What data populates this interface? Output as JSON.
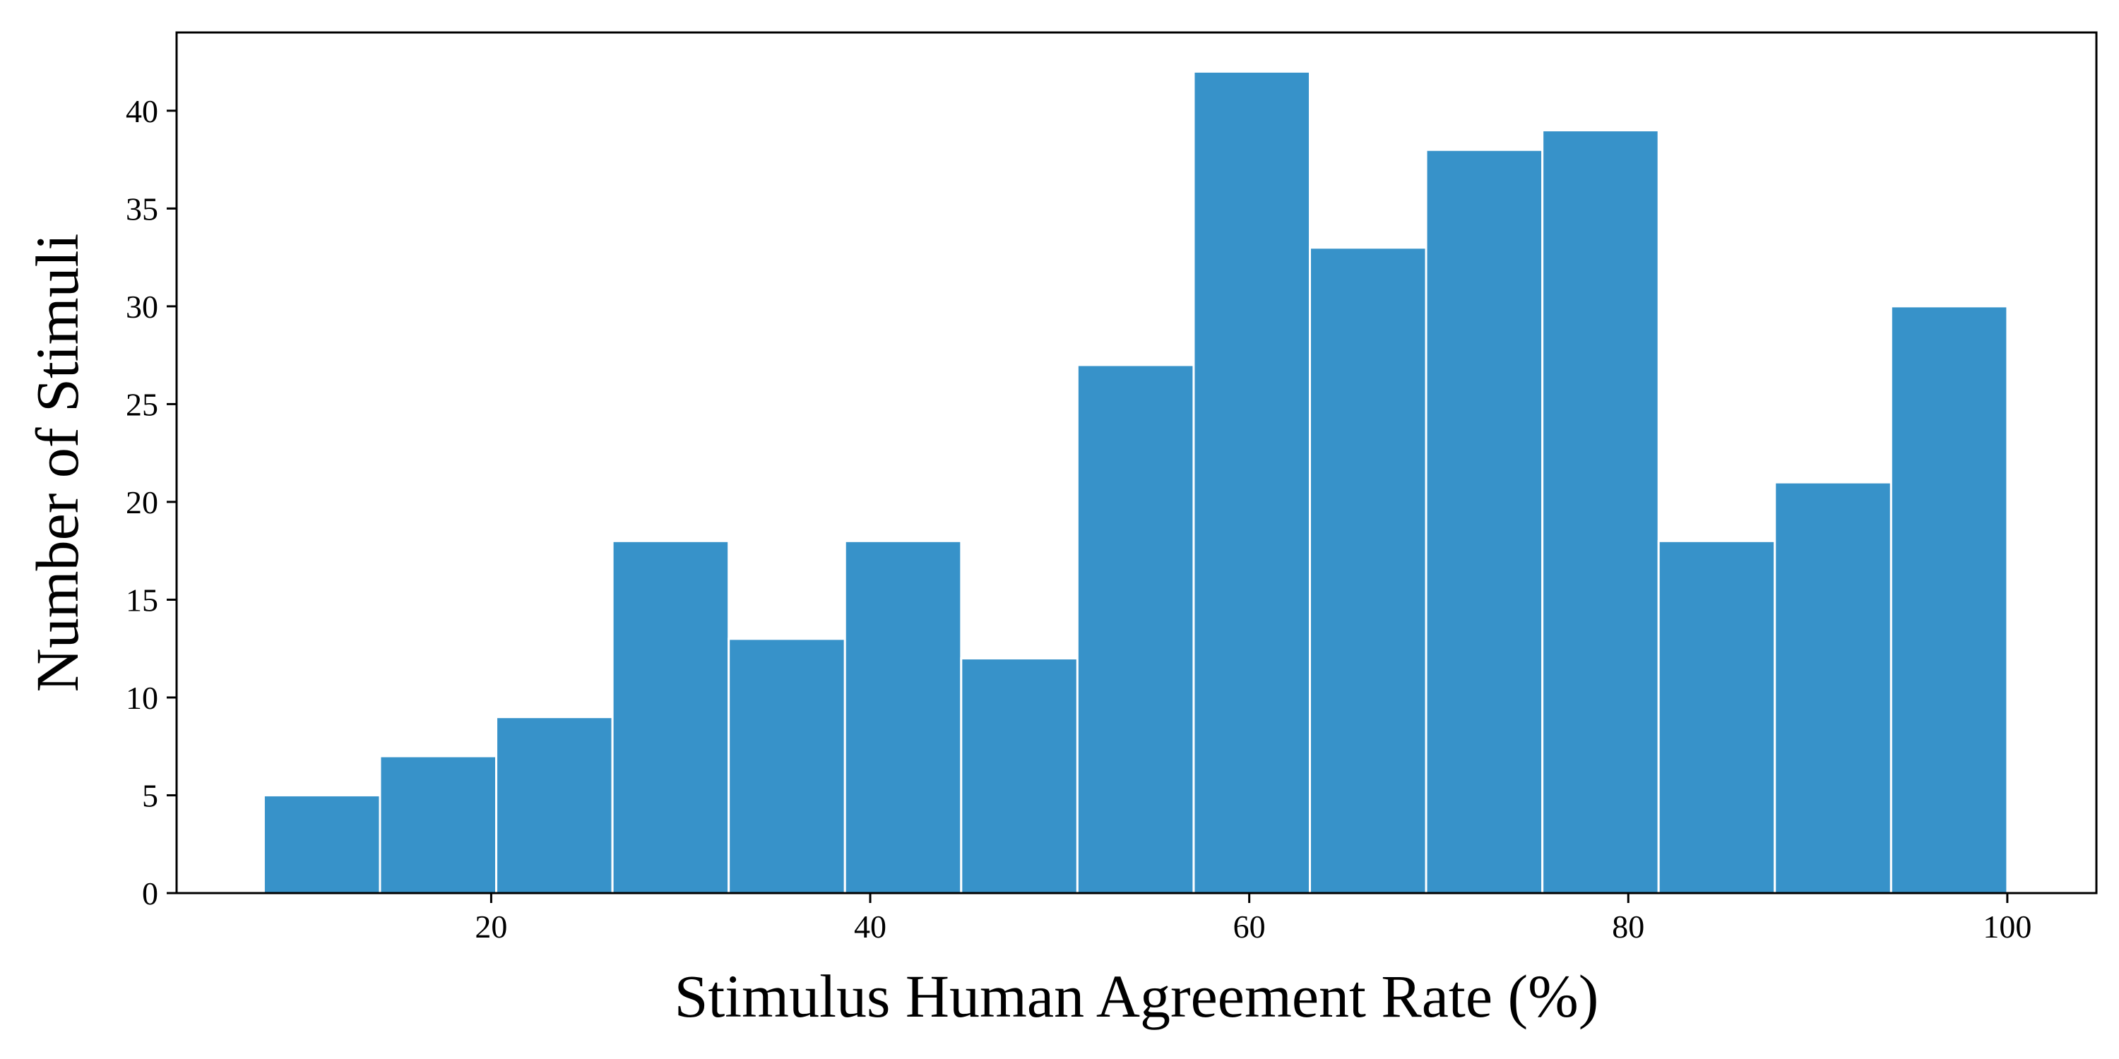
{
  "chart_data": {
    "type": "bar",
    "subtype": "histogram",
    "xlabel": "Stimulus Human Agreement Rate (%)",
    "ylabel": "Number of Stimuli",
    "xlim": [
      3.4,
      104.7
    ],
    "ylim": [
      0,
      44
    ],
    "xticks": [
      20,
      40,
      60,
      80,
      100
    ],
    "yticks": [
      0,
      5,
      10,
      15,
      20,
      25,
      30,
      35,
      40
    ],
    "bin_edges": [
      8.0,
      14.133,
      20.267,
      26.4,
      32.533,
      38.667,
      44.8,
      50.933,
      57.067,
      63.2,
      69.333,
      75.467,
      81.6,
      87.733,
      93.867,
      100.0
    ],
    "values": [
      5,
      7,
      9,
      18,
      13,
      18,
      12,
      27,
      42,
      33,
      38,
      39,
      18,
      21,
      30
    ],
    "bar_color": "#3792c9",
    "bar_edge_color": "#ffffff",
    "grid": false,
    "legend": false
  }
}
